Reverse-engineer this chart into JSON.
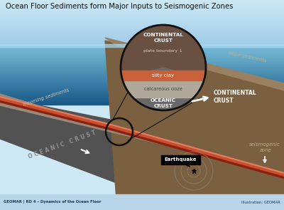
{
  "title": "Ocean Floor Sediments form Major Inputs to Seismogenic Zones",
  "bg_sky_top": "#cce8f5",
  "bg_sky_bottom": "#a8d4ec",
  "bg_water_top": "#78bcd8",
  "bg_water_bottom": "#1a5a88",
  "oceanic_crust_color": "#525252",
  "continental_crust_color": "#7a6040",
  "slope_sediment_color": "#9a8060",
  "silty_clay_color": "#c8603a",
  "calcareous_ooze_color": "#b0a898",
  "seismic_line_color": "#c85030",
  "footer_bg": "#b8d4e8",
  "circle_cont_color": "#6a5040",
  "circle_ocean_color": "#686868",
  "label_incoming": "incoming sediments",
  "label_oceanic": "OCEANIC  CRUST",
  "label_continental_right": "CONTINENTAL\nCRUST",
  "label_slope": "slope sediments",
  "label_earthquake": "Earthquake",
  "label_seismogenic": "seismogenic\nzone",
  "label_plateboundary": "plate boundary ↓",
  "label_siltyclay": "silty clay",
  "label_calcareous": "calcareous ooze",
  "label_cont_circle": "CONTINENTAL\nCRUST",
  "label_ocean_circle": "OCEANIC\nCRUST",
  "footer_left": "GEOMAR | RD 4 – Dynamics of the Ocean Floor",
  "footer_right": "Illustration: GEOMAR"
}
